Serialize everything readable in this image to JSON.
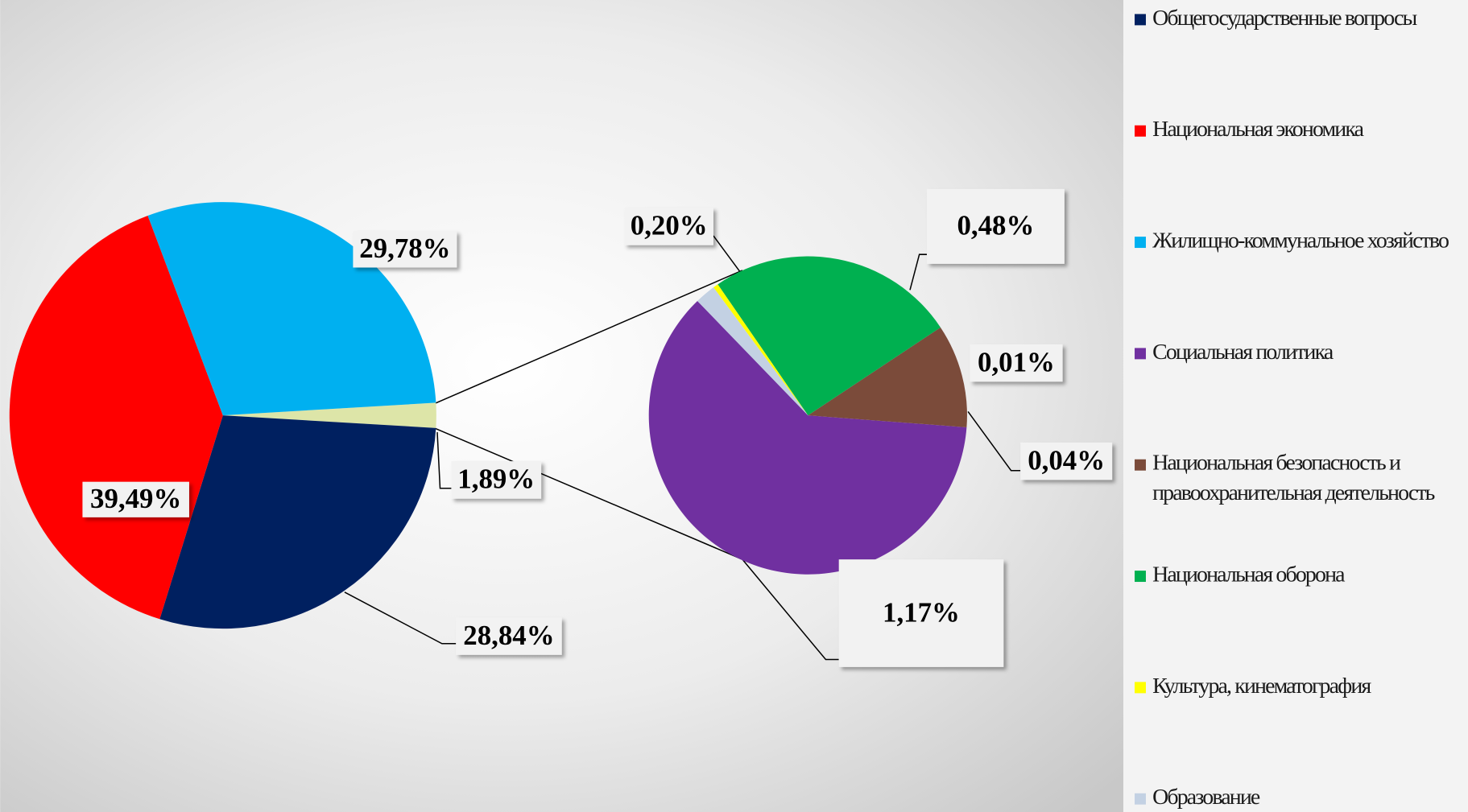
{
  "chart_data": {
    "type": "pie-of-pie",
    "categories": [
      "Общегосударственные вопросы",
      "Национальная экономика",
      "Жилищно-коммунальное хозяйство",
      "Социальная политика",
      "Национальная безопасность и правоохранительная деятельность",
      "Национальная оборона",
      "Культура, кинематография",
      "Образование"
    ],
    "values": [
      28.84,
      39.49,
      29.78,
      1.17,
      0.2,
      0.48,
      0.01,
      0.04
    ],
    "value_labels": [
      "28,84%",
      "39,49%",
      "29,78%",
      "1,17%",
      "0,20%",
      "0,48%",
      "0,01%",
      "0,04%"
    ],
    "colors": [
      "#002060",
      "#ff0000",
      "#00b0f0",
      "#7030a0",
      "#7b4b3a",
      "#00b050",
      "#ffff00",
      "#c3d1e3"
    ],
    "second_pie_count": 5,
    "other": {
      "value": 1.89,
      "value_label": "1,89%",
      "color": "#dde5a8"
    },
    "legend": "right"
  }
}
